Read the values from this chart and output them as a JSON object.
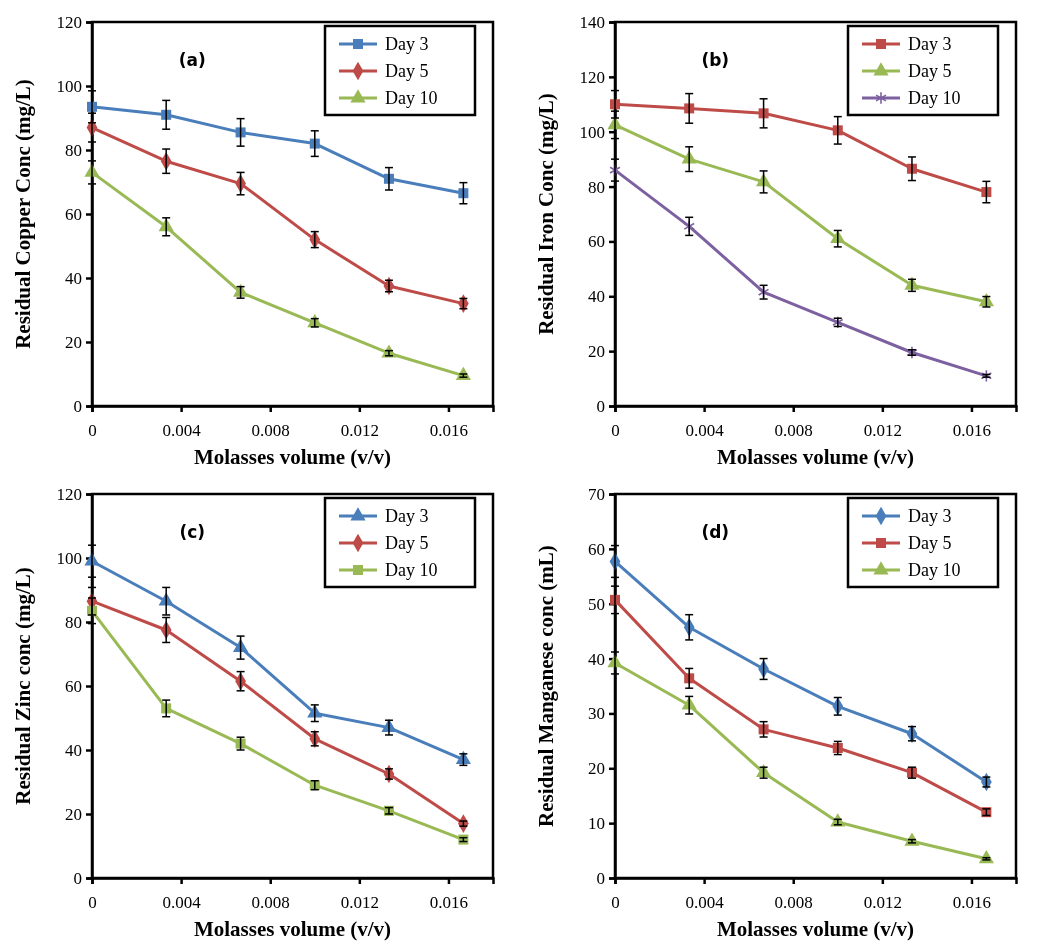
{
  "chart_data": [
    {
      "type": "line",
      "xlabel": "Molasses volume (v/v)",
      "ylabel": "Residual Copper Conc (mg/L)",
      "annotations": [
        "(a)"
      ],
      "x": [
        0,
        0.00333,
        0.00667,
        0.01,
        0.01333,
        0.01667
      ],
      "xlim": [
        0,
        0.018
      ],
      "xticks": [
        0,
        0.004,
        0.008,
        0.012,
        0.016
      ],
      "ylim": [
        0,
        120
      ],
      "yticks": [
        0,
        20,
        40,
        60,
        80,
        100,
        120
      ],
      "legend": "top right",
      "grid": false,
      "series": [
        {
          "name": "Day 3",
          "color": "#4a7ebb",
          "marker": "square",
          "values": [
            93.5,
            91,
            85.5,
            82,
            71,
            66.5
          ],
          "errors": [
            5,
            4.5,
            4.3,
            4,
            3.5,
            3.3
          ]
        },
        {
          "name": "Day 5",
          "color": "#be4b48",
          "marker": "diamond",
          "values": [
            87,
            76.5,
            69.5,
            52,
            37.5,
            32
          ],
          "errors": [
            4.5,
            3.8,
            3.5,
            2.5,
            1.8,
            1.6
          ]
        },
        {
          "name": "Day 10",
          "color": "#98b954",
          "marker": "triangle",
          "values": [
            73,
            56,
            35.5,
            26,
            16.5,
            9.5
          ],
          "errors": [
            3.6,
            2.8,
            1.8,
            1.3,
            0.8,
            0.5
          ]
        }
      ]
    },
    {
      "type": "line",
      "xlabel": "Molasses volume (v/v)",
      "ylabel": "Residual Iron Conc (mg/L)",
      "annotations": [
        "(b)"
      ],
      "x": [
        0,
        0.00333,
        0.00667,
        0.01,
        0.01333,
        0.01667
      ],
      "xlim": [
        0,
        0.018
      ],
      "xticks": [
        0,
        0.004,
        0.008,
        0.012,
        0.016
      ],
      "ylim": [
        0,
        140
      ],
      "yticks": [
        0,
        20,
        40,
        60,
        80,
        100,
        120,
        140
      ],
      "legend": "top right",
      "grid": false,
      "series": [
        {
          "name": "Day 3",
          "color": "#be4b48",
          "marker": "square",
          "values": [
            110,
            108.5,
            106.7,
            100.5,
            86.5,
            78
          ],
          "errors": [
            5,
            5.4,
            5.3,
            5,
            4.3,
            3.9
          ]
        },
        {
          "name": "Day 5",
          "color": "#98b954",
          "marker": "triangle",
          "values": [
            102.5,
            90,
            81.7,
            61,
            44,
            38
          ],
          "errors": [
            5,
            4.5,
            4,
            3,
            2.2,
            1.9
          ]
        },
        {
          "name": "Day 10",
          "color": "#7d60a0",
          "marker": "cross",
          "values": [
            86,
            65.5,
            41.5,
            30.5,
            19.5,
            11
          ],
          "errors": [
            4,
            3.3,
            2.5,
            1.5,
            1,
            0.5
          ]
        }
      ]
    },
    {
      "type": "line",
      "xlabel": "Molasses volume (v/v)",
      "ylabel": "Residual Zinc conc (mg/L)",
      "annotations": [
        "(c)"
      ],
      "x": [
        0,
        0.00333,
        0.00667,
        0.01,
        0.01333,
        0.01667
      ],
      "xlim": [
        0,
        0.018
      ],
      "xticks": [
        0,
        0.004,
        0.008,
        0.012,
        0.016
      ],
      "ylim": [
        0,
        120
      ],
      "yticks": [
        0,
        20,
        40,
        60,
        80,
        100,
        120
      ],
      "legend": "top right",
      "grid": false,
      "series": [
        {
          "name": "Day 3",
          "color": "#4a7ebb",
          "marker": "triangle",
          "values": [
            99,
            86.5,
            72,
            51.5,
            47,
            37
          ],
          "errors": [
            5,
            4.3,
            3.6,
            2.6,
            2.3,
            1.8
          ]
        },
        {
          "name": "Day 5",
          "color": "#be4b48",
          "marker": "diamond",
          "values": [
            86.5,
            77.5,
            61.5,
            43.5,
            32.5,
            17
          ],
          "errors": [
            4.3,
            3.9,
            3,
            2.2,
            1.6,
            0.8
          ]
        },
        {
          "name": "Day 10",
          "color": "#98b954",
          "marker": "square",
          "values": [
            83.5,
            53,
            42,
            29,
            21,
            12
          ],
          "errors": [
            4,
            2.6,
            2,
            1.4,
            1,
            0.6
          ]
        }
      ]
    },
    {
      "type": "line",
      "xlabel": "Molasses volume (v/v)",
      "ylabel": "Residual Manganese conc (mL)",
      "annotations": [
        "(d)"
      ],
      "x": [
        0,
        0.00333,
        0.00667,
        0.01,
        0.01333,
        0.01667
      ],
      "xlim": [
        0,
        0.018
      ],
      "xticks": [
        0,
        0.004,
        0.008,
        0.012,
        0.016
      ],
      "ylim": [
        0,
        70
      ],
      "yticks": [
        0,
        10,
        20,
        30,
        40,
        50,
        60,
        70
      ],
      "legend": "top right",
      "grid": false,
      "series": [
        {
          "name": "Day 3",
          "color": "#4a7ebb",
          "marker": "diamond",
          "values": [
            57.7,
            45.7,
            38.1,
            31.3,
            26.3,
            17.5
          ],
          "errors": [
            2.9,
            2.3,
            1.9,
            1.6,
            1.3,
            0.9
          ]
        },
        {
          "name": "Day 5",
          "color": "#be4b48",
          "marker": "square",
          "values": [
            50.7,
            36.4,
            27.1,
            23.7,
            19.2,
            12
          ],
          "errors": [
            2.5,
            1.8,
            1.4,
            1.2,
            1,
            0.6
          ]
        },
        {
          "name": "Day 10",
          "color": "#98b954",
          "marker": "triangle",
          "values": [
            39.2,
            31.5,
            19.2,
            10.2,
            6.7,
            3.5
          ],
          "errors": [
            2,
            1.6,
            1,
            0.5,
            0.3,
            0.2
          ]
        }
      ]
    }
  ]
}
